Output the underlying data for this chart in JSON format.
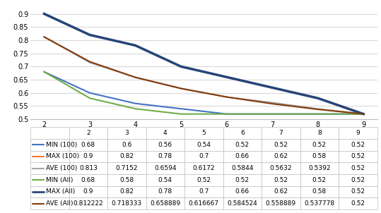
{
  "x": [
    2,
    3,
    4,
    5,
    6,
    7,
    8,
    9
  ],
  "series": {
    "MIN (100)": {
      "values": [
        0.68,
        0.6,
        0.56,
        0.54,
        0.52,
        0.52,
        0.52,
        0.52
      ],
      "color": "#4472C4",
      "linewidth": 1.5,
      "linestyle": "-"
    },
    "MAX (100)": {
      "values": [
        0.9,
        0.82,
        0.78,
        0.7,
        0.66,
        0.62,
        0.58,
        0.52
      ],
      "color": "#ED7D31",
      "linewidth": 1.5,
      "linestyle": "-"
    },
    "AVE (100)": {
      "values": [
        0.813,
        0.7152,
        0.6594,
        0.6172,
        0.5844,
        0.5632,
        0.5392,
        0.52
      ],
      "color": "#A5A5A5",
      "linewidth": 1.5,
      "linestyle": "-"
    },
    "MIN (All)": {
      "values": [
        0.68,
        0.58,
        0.54,
        0.52,
        0.52,
        0.52,
        0.52,
        0.52
      ],
      "color": "#70AD47",
      "linewidth": 1.5,
      "linestyle": "-"
    },
    "MAX (All)": {
      "values": [
        0.9,
        0.82,
        0.78,
        0.7,
        0.66,
        0.62,
        0.58,
        0.52
      ],
      "color": "#264478",
      "linewidth": 2.5,
      "linestyle": "-"
    },
    "AVE (All)": {
      "values": [
        0.812222,
        0.718333,
        0.658889,
        0.616667,
        0.584524,
        0.558889,
        0.537778,
        0.52
      ],
      "color": "#843C0C",
      "linewidth": 1.5,
      "linestyle": "-"
    }
  },
  "ylim": [
    0.5,
    0.92
  ],
  "yticks": [
    0.5,
    0.55,
    0.6,
    0.65,
    0.7,
    0.75,
    0.8,
    0.85,
    0.9
  ],
  "xticks": [
    2,
    3,
    4,
    5,
    6,
    7,
    8,
    9
  ],
  "table_rows": [
    [
      "MIN (100)",
      "0.68",
      "0.6",
      "0.56",
      "0.54",
      "0.52",
      "0.52",
      "0.52",
      "0.52"
    ],
    [
      "MAX (100)",
      "0.9",
      "0.82",
      "0.78",
      "0.7",
      "0.66",
      "0.62",
      "0.58",
      "0.52"
    ],
    [
      "AVE (100)",
      "0.813",
      "0.7152",
      "0.6594",
      "0.6172",
      "0.5844",
      "0.5632",
      "0.5392",
      "0.52"
    ],
    [
      "MIN (All)",
      "0.68",
      "0.58",
      "0.54",
      "0.52",
      "0.52",
      "0.52",
      "0.52",
      "0.52"
    ],
    [
      "MAX (All)",
      "0.9",
      "0.82",
      "0.78",
      "0.7",
      "0.66",
      "0.62",
      "0.58",
      "0.52"
    ],
    [
      "AVE (All)",
      "0.812222",
      "0.718333",
      "0.658889",
      "0.616667",
      "0.584524",
      "0.558889",
      "0.537778",
      "0.52"
    ]
  ],
  "legend_colors": [
    "#4472C4",
    "#ED7D31",
    "#A5A5A5",
    "#70AD47",
    "#264478",
    "#843C0C"
  ],
  "legend_labels": [
    "MIN (100)",
    "MAX (100)",
    "AVE (100)",
    "MIN (All)",
    "MAX (All)",
    "AVE (All)"
  ],
  "background_color": "#FFFFFF",
  "grid_color": "#D9D9D9"
}
